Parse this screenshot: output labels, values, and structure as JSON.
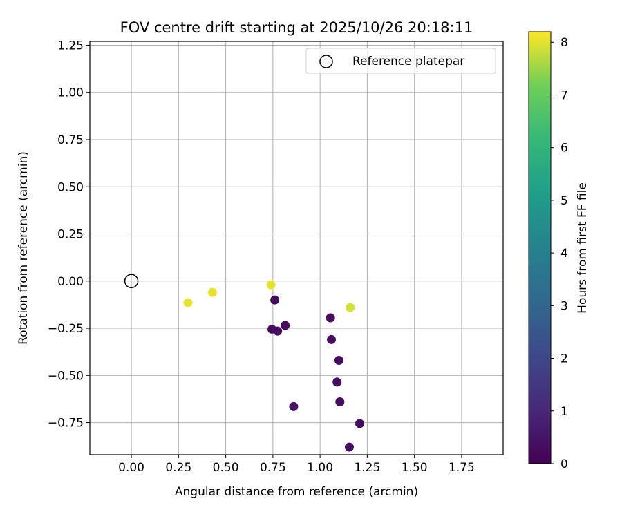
{
  "chart_data": {
    "type": "scatter",
    "title": "FOV centre drift starting at 2025/10/26 20:18:11",
    "xlabel": "Angular distance from reference (arcmin)",
    "ylabel": "Rotation from reference (arcmin)",
    "xlim": [
      -0.22,
      1.97
    ],
    "ylim": [
      -0.92,
      1.27
    ],
    "xticks": [
      0.0,
      0.25,
      0.5,
      0.75,
      1.0,
      1.25,
      1.5,
      1.75
    ],
    "xtick_labels": [
      "0.00",
      "0.25",
      "0.50",
      "0.75",
      "1.00",
      "1.25",
      "1.50",
      "1.75"
    ],
    "yticks": [
      -0.75,
      -0.5,
      -0.25,
      0.0,
      0.25,
      0.5,
      0.75,
      1.0,
      1.25
    ],
    "ytick_labels": [
      "−0.75",
      "−0.50",
      "−0.25",
      "0.00",
      "0.25",
      "0.50",
      "0.75",
      "1.00",
      "1.25"
    ],
    "grid": true,
    "legend": {
      "position": "top-right",
      "entries": [
        "Reference platepar"
      ]
    },
    "reference_point": {
      "x": 0.0,
      "y": 0.0,
      "label": "Reference platepar"
    },
    "points": [
      {
        "x": 0.3,
        "y": -0.115,
        "hours": 8.05
      },
      {
        "x": 0.43,
        "y": -0.06,
        "hours": 8.05
      },
      {
        "x": 0.74,
        "y": -0.02,
        "hours": 8.05
      },
      {
        "x": 1.16,
        "y": -0.14,
        "hours": 7.9
      },
      {
        "x": 0.76,
        "y": -0.1,
        "hours": 0.2
      },
      {
        "x": 0.745,
        "y": -0.255,
        "hours": 0.3
      },
      {
        "x": 0.775,
        "y": -0.265,
        "hours": 0.3
      },
      {
        "x": 0.815,
        "y": -0.235,
        "hours": 0.3
      },
      {
        "x": 1.055,
        "y": -0.195,
        "hours": 0.3
      },
      {
        "x": 1.06,
        "y": -0.31,
        "hours": 0.3
      },
      {
        "x": 1.1,
        "y": -0.42,
        "hours": 0.3
      },
      {
        "x": 1.09,
        "y": -0.535,
        "hours": 0.3
      },
      {
        "x": 1.105,
        "y": -0.64,
        "hours": 0.3
      },
      {
        "x": 0.86,
        "y": -0.665,
        "hours": 0.5
      },
      {
        "x": 1.21,
        "y": -0.755,
        "hours": 0.3
      },
      {
        "x": 1.155,
        "y": -0.88,
        "hours": 0.3
      }
    ],
    "colorbar": {
      "label": "Hours from first FF file",
      "min": 0,
      "max": 8.2,
      "ticks": [
        0,
        1,
        2,
        3,
        4,
        5,
        6,
        7,
        8
      ],
      "tick_labels": [
        "0",
        "1",
        "2",
        "3",
        "4",
        "5",
        "6",
        "7",
        "8"
      ],
      "colormap": "viridis"
    }
  },
  "colors": {
    "grid": "#b0b0b0",
    "axis": "#000000",
    "legend_border": "#cccccc"
  }
}
